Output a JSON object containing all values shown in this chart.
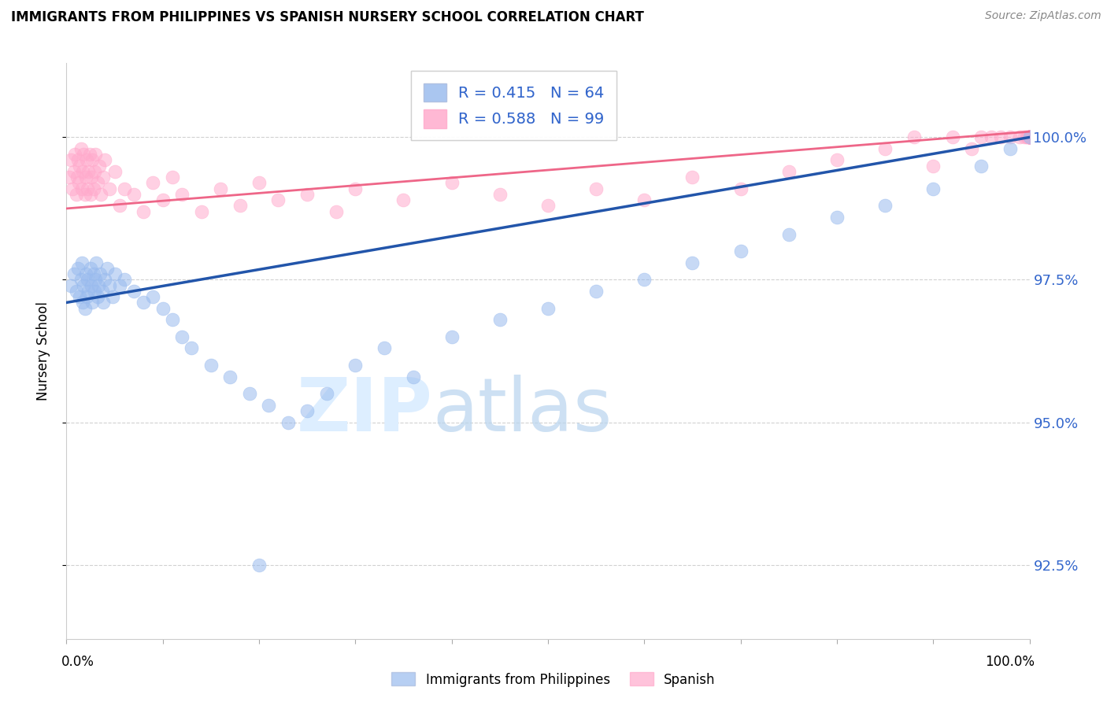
{
  "title": "IMMIGRANTS FROM PHILIPPINES VS SPANISH NURSERY SCHOOL CORRELATION CHART",
  "source": "Source: ZipAtlas.com",
  "ylabel": "Nursery School",
  "yticks": [
    92.5,
    95.0,
    97.5,
    100.0
  ],
  "ytick_labels": [
    "92.5%",
    "95.0%",
    "97.5%",
    "100.0%"
  ],
  "xmin": 0.0,
  "xmax": 100.0,
  "ymin": 91.2,
  "ymax": 101.3,
  "blue_R": 0.415,
  "blue_N": 64,
  "pink_R": 0.588,
  "pink_N": 99,
  "blue_color": "#99BBEE",
  "pink_color": "#FFAACC",
  "blue_line_color": "#2255AA",
  "pink_line_color": "#EE6688",
  "legend_label_blue": "Immigrants from Philippines",
  "legend_label_pink": "Spanish",
  "blue_line_x0": 0,
  "blue_line_y0": 97.1,
  "blue_line_x1": 100,
  "blue_line_y1": 100.0,
  "pink_line_x0": 0,
  "pink_line_y0": 98.75,
  "pink_line_x1": 100,
  "pink_line_y1": 100.1,
  "blue_x": [
    0.5,
    0.8,
    1.0,
    1.2,
    1.4,
    1.5,
    1.6,
    1.7,
    1.8,
    1.9,
    2.0,
    2.1,
    2.2,
    2.3,
    2.5,
    2.6,
    2.7,
    2.8,
    2.9,
    3.0,
    3.1,
    3.2,
    3.3,
    3.5,
    3.7,
    3.8,
    4.0,
    4.2,
    4.5,
    4.8,
    5.0,
    5.5,
    6.0,
    7.0,
    8.0,
    9.0,
    10.0,
    11.0,
    12.0,
    13.0,
    15.0,
    17.0,
    19.0,
    21.0,
    23.0,
    25.0,
    27.0,
    30.0,
    33.0,
    36.0,
    40.0,
    45.0,
    50.0,
    55.0,
    60.0,
    65.0,
    70.0,
    75.0,
    80.0,
    85.0,
    90.0,
    95.0,
    98.0,
    100.0
  ],
  "blue_y": [
    97.4,
    97.6,
    97.3,
    97.7,
    97.2,
    97.5,
    97.8,
    97.1,
    97.4,
    97.0,
    97.6,
    97.2,
    97.5,
    97.3,
    97.7,
    97.4,
    97.1,
    97.6,
    97.3,
    97.5,
    97.8,
    97.2,
    97.4,
    97.6,
    97.3,
    97.1,
    97.5,
    97.7,
    97.4,
    97.2,
    97.6,
    97.4,
    97.5,
    97.3,
    97.1,
    97.2,
    97.0,
    96.8,
    96.5,
    96.3,
    96.0,
    95.8,
    95.5,
    95.3,
    95.0,
    95.2,
    95.5,
    96.0,
    96.3,
    95.8,
    96.5,
    96.8,
    97.0,
    97.3,
    97.5,
    97.8,
    98.0,
    98.3,
    98.6,
    98.8,
    99.1,
    99.5,
    99.8,
    100.0
  ],
  "blue_outlier_x": [
    20.0
  ],
  "blue_outlier_y": [
    92.5
  ],
  "pink_x": [
    0.3,
    0.5,
    0.6,
    0.8,
    0.9,
    1.0,
    1.1,
    1.2,
    1.3,
    1.4,
    1.5,
    1.6,
    1.7,
    1.8,
    1.9,
    2.0,
    2.1,
    2.2,
    2.3,
    2.4,
    2.5,
    2.6,
    2.7,
    2.8,
    2.9,
    3.0,
    3.2,
    3.4,
    3.6,
    3.8,
    4.0,
    4.5,
    5.0,
    5.5,
    6.0,
    7.0,
    8.0,
    9.0,
    10.0,
    11.0,
    12.0,
    14.0,
    16.0,
    18.0,
    20.0,
    22.0,
    25.0,
    28.0,
    30.0,
    35.0,
    40.0,
    45.0,
    50.0,
    55.0,
    60.0,
    65.0,
    70.0,
    75.0,
    80.0,
    85.0,
    88.0,
    90.0,
    92.0,
    94.0,
    95.0,
    96.0,
    97.0,
    98.0,
    99.0,
    99.5,
    99.7,
    99.8,
    99.9,
    100.0,
    100.0,
    100.0,
    100.0,
    100.0,
    100.0,
    100.0,
    100.0,
    100.0,
    100.0,
    100.0,
    100.0,
    100.0,
    100.0,
    100.0,
    100.0,
    100.0,
    100.0,
    100.0,
    100.0,
    100.0,
    100.0,
    100.0,
    100.0,
    100.0,
    100.0
  ],
  "pink_y": [
    99.3,
    99.6,
    99.1,
    99.4,
    99.7,
    99.0,
    99.3,
    99.6,
    99.2,
    99.5,
    99.8,
    99.1,
    99.4,
    99.7,
    99.0,
    99.3,
    99.6,
    99.1,
    99.4,
    99.7,
    99.0,
    99.3,
    99.6,
    99.1,
    99.4,
    99.7,
    99.2,
    99.5,
    99.0,
    99.3,
    99.6,
    99.1,
    99.4,
    98.8,
    99.1,
    99.0,
    98.7,
    99.2,
    98.9,
    99.3,
    99.0,
    98.7,
    99.1,
    98.8,
    99.2,
    98.9,
    99.0,
    98.7,
    99.1,
    98.9,
    99.2,
    99.0,
    98.8,
    99.1,
    98.9,
    99.3,
    99.1,
    99.4,
    99.6,
    99.8,
    100.0,
    99.5,
    100.0,
    99.8,
    100.0,
    100.0,
    100.0,
    100.0,
    100.0,
    100.0,
    100.0,
    100.0,
    100.0,
    100.0,
    100.0,
    100.0,
    100.0,
    100.0,
    100.0,
    100.0,
    100.0,
    100.0,
    100.0,
    100.0,
    100.0,
    100.0,
    100.0,
    100.0,
    100.0,
    100.0,
    100.0,
    100.0,
    100.0,
    100.0,
    100.0,
    100.0,
    100.0,
    100.0,
    100.0
  ]
}
